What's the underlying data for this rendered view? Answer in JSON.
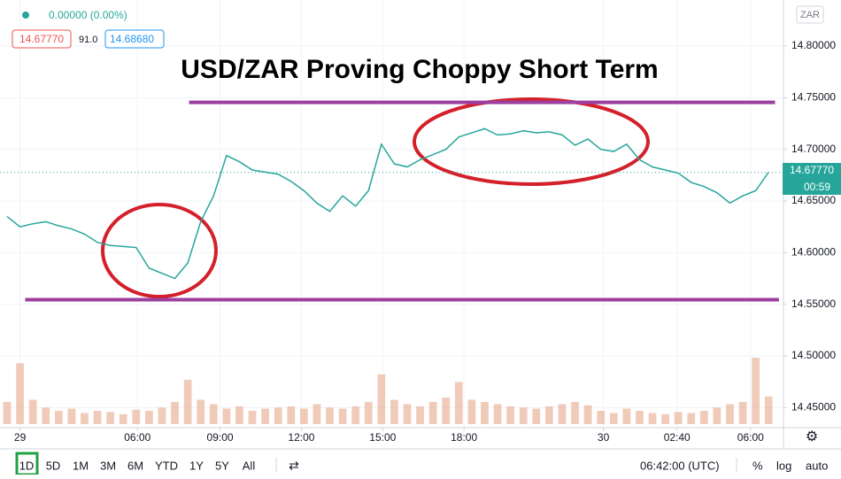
{
  "header": {
    "change": "0.00000 (0.00%)",
    "bid": "14.67770",
    "spread": "91.0",
    "ask": "14.68680",
    "currency": "ZAR"
  },
  "price_tag": {
    "price": "14.67770",
    "countdown": "00:59"
  },
  "toolbar": {
    "ranges": [
      "1D",
      "5D",
      "1M",
      "3M",
      "6M",
      "YTD",
      "1Y",
      "5Y",
      "All"
    ],
    "clock": "06:42:00 (UTC)",
    "percent": "%",
    "log": "log",
    "auto": "auto"
  },
  "chart_data": {
    "type": "line",
    "title": "USD/ZAR Proving Choppy Short Term",
    "series": [
      {
        "color": "#26a69a",
        "values": [
          14.635,
          14.625,
          14.628,
          14.63,
          14.626,
          14.623,
          14.618,
          14.61,
          14.607,
          14.606,
          14.605,
          14.585,
          14.58,
          14.575,
          14.59,
          14.63,
          14.655,
          14.694,
          14.688,
          14.68,
          14.678,
          14.676,
          14.669,
          14.66,
          14.648,
          14.64,
          14.655,
          14.645,
          14.66,
          14.705,
          14.686,
          14.683,
          14.69,
          14.695,
          14.7,
          14.712,
          14.716,
          14.72,
          14.714,
          14.715,
          14.718,
          14.716,
          14.717,
          14.714,
          14.704,
          14.71,
          14.7,
          14.698,
          14.705,
          14.69,
          14.683,
          14.68,
          14.677,
          14.668,
          14.664,
          14.658,
          14.648,
          14.655,
          14.66,
          14.678
        ]
      }
    ],
    "volume": {
      "color": "#e8a98a",
      "values": [
        20,
        55,
        22,
        15,
        12,
        14,
        10,
        12,
        11,
        9,
        13,
        12,
        15,
        20,
        40,
        22,
        18,
        14,
        16,
        12,
        14,
        15,
        16,
        14,
        18,
        15,
        14,
        16,
        20,
        45,
        22,
        18,
        16,
        20,
        24,
        38,
        22,
        20,
        18,
        16,
        15,
        14,
        16,
        18,
        20,
        17,
        12,
        10,
        14,
        12,
        10,
        9,
        11,
        10,
        12,
        15,
        18,
        20,
        60,
        25
      ]
    },
    "xlim": [
      -0.549,
      60.15
    ],
    "ylim": [
      14.4306,
      14.8446
    ],
    "xticks": [
      {
        "value": 1,
        "label": "29"
      },
      {
        "value": 10.1,
        "label": "06:00"
      },
      {
        "value": 16.5,
        "label": "09:00"
      },
      {
        "value": 22.8,
        "label": "12:00"
      },
      {
        "value": 29.1,
        "label": "15:00"
      },
      {
        "value": 35.4,
        "label": "18:00"
      },
      {
        "value": 46.2,
        "label": "30"
      },
      {
        "value": 51.9,
        "label": "02:40"
      },
      {
        "value": 57.6,
        "label": "06:00"
      }
    ],
    "yticks": [
      {
        "value": 14.45,
        "label": "14.45000"
      },
      {
        "value": 14.5,
        "label": "14.50000"
      },
      {
        "value": 14.55,
        "label": "14.55000"
      },
      {
        "value": 14.6,
        "label": "14.60000"
      },
      {
        "value": 14.65,
        "label": "14.65000"
      },
      {
        "value": 14.7,
        "label": "14.70000"
      },
      {
        "value": 14.75,
        "label": "14.75000"
      },
      {
        "value": 14.8,
        "label": "14.80000"
      }
    ],
    "levels": [
      {
        "value": 14.7455,
        "color": "#9c3fa0",
        "x": [
          14.1,
          59.5
        ]
      },
      {
        "value": 14.5545,
        "color": "#9c3fa0",
        "x": [
          1.4,
          59.8
        ]
      }
    ],
    "last_price": 14.6777,
    "grid": true
  }
}
